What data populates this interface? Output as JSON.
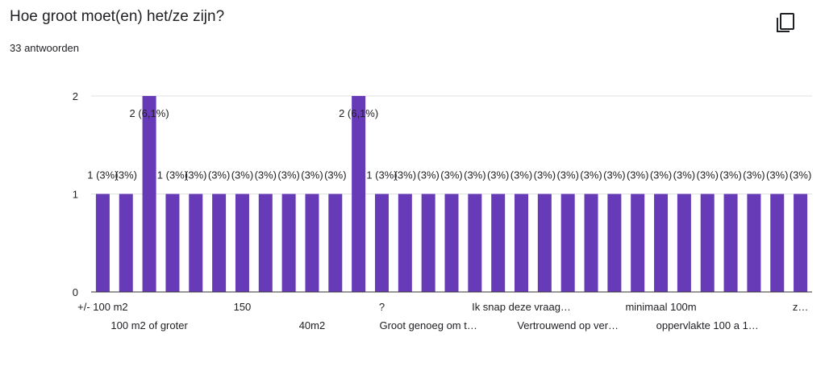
{
  "question": {
    "title": "Hoe groot moet(en) het/ze zijn?",
    "response_count": "33 antwoorden"
  },
  "icons": {
    "copy": "copy-icon"
  },
  "colors": {
    "bar": "#673ab7",
    "grid": "#e0e0e0",
    "axis": "#333333",
    "text": "#202124"
  },
  "chart_data": {
    "type": "bar",
    "title": "",
    "xlabel": "",
    "ylabel": "",
    "ylim": [
      0,
      2
    ],
    "yticks": [
      "0",
      "1",
      "2"
    ],
    "grid": true,
    "values": [
      1,
      1,
      2,
      1,
      1,
      1,
      1,
      1,
      1,
      1,
      1,
      2,
      1,
      1,
      1,
      1,
      1,
      1,
      1,
      1,
      1,
      1,
      1,
      1,
      1,
      1,
      1,
      1,
      1,
      1,
      1
    ],
    "data_labels": [
      "1 (3%)",
      "(3%)",
      "2 (6,1%)",
      "1 (3%)",
      "(3%)",
      "(3%)",
      "(3%)",
      "(3%)",
      "(3%)",
      "(3%)",
      "(3%)",
      "2 (6,1%)",
      "1 (3%)",
      "(3%)",
      "(3%)",
      "(3%)",
      "(3%)",
      "(3%)",
      "(3%)",
      "(3%)",
      "(3%)",
      "(3%)",
      "(3%)",
      "(3%)",
      "(3%)",
      "(3%)",
      "(3%)",
      "(3%)",
      "(3%)",
      "(3%)",
      "(3%)"
    ],
    "visible_category_labels": [
      {
        "index": 0,
        "row": 1,
        "text": "+/- 100 m2"
      },
      {
        "index": 2,
        "row": 2,
        "text": "100 m2 of groter"
      },
      {
        "index": 6,
        "row": 1,
        "text": "150"
      },
      {
        "index": 9,
        "row": 2,
        "text": "40m2"
      },
      {
        "index": 12,
        "row": 1,
        "text": "?"
      },
      {
        "index": 14,
        "row": 2,
        "text": "Groot genoeg om t…"
      },
      {
        "index": 18,
        "row": 1,
        "text": "Ik snap deze vraag…"
      },
      {
        "index": 20,
        "row": 2,
        "text": "Vertrouwend op ver…"
      },
      {
        "index": 24,
        "row": 1,
        "text": "minimaal 100m"
      },
      {
        "index": 26,
        "row": 2,
        "text": "oppervlakte 100 a 1…"
      },
      {
        "index": 30,
        "row": 1,
        "text": "z…"
      }
    ]
  }
}
